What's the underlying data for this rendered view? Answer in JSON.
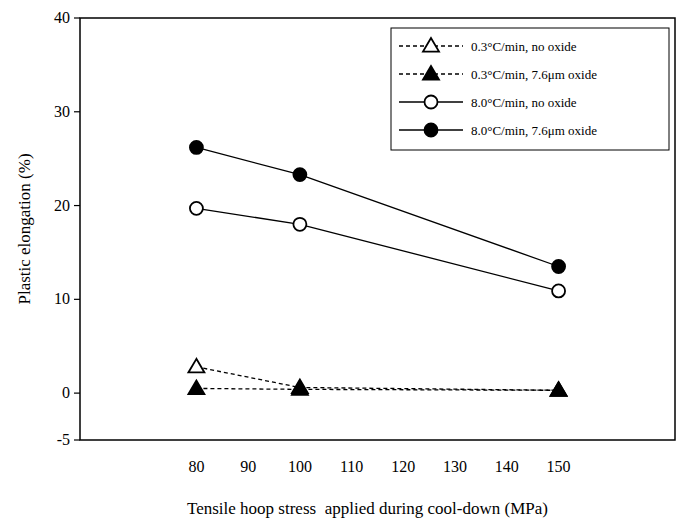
{
  "chart_data": {
    "type": "line",
    "x_label": "Tensile hoop stress  applied during cool-down (MPa)",
    "y_label": "Plastic elongation (%)",
    "x": [
      80,
      100,
      150
    ],
    "xlim": [
      57.5,
      172.5
    ],
    "xticks": [
      80,
      90,
      100,
      110,
      120,
      130,
      140,
      150
    ],
    "ylim": [
      -5,
      40
    ],
    "yticks": [
      -5,
      0,
      10,
      20,
      30,
      40
    ],
    "grid": false,
    "legend": "top-right",
    "series": [
      {
        "name": "0.3°C/min, no oxide",
        "color": "#000000",
        "line_style": "dashed",
        "marker": "triangle-open",
        "values": [
          2.8,
          0.6,
          0.3
        ]
      },
      {
        "name": "0.3°C/min, 7.6μm oxide",
        "color": "#000000",
        "line_style": "dashed",
        "marker": "triangle",
        "values": [
          0.5,
          0.4,
          0.3
        ]
      },
      {
        "name": "8.0°C/min, no oxide",
        "color": "#000000",
        "line_style": "solid",
        "marker": "circle-open",
        "values": [
          19.7,
          18.0,
          10.9
        ]
      },
      {
        "name": "8.0°C/min, 7.6μm oxide",
        "color": "#000000",
        "line_style": "solid",
        "marker": "circle",
        "values": [
          26.2,
          23.3,
          13.5
        ]
      }
    ]
  }
}
